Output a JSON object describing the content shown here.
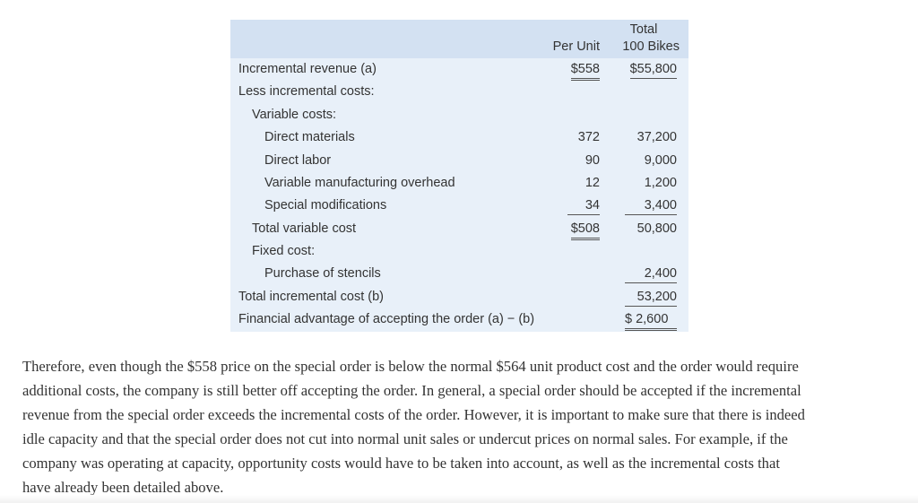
{
  "table": {
    "header": {
      "per_unit": "Per Unit",
      "total_line1": "Total",
      "total_line2": "100 Bikes"
    },
    "rows": [
      {
        "label": "Incremental revenue (a)",
        "per_unit": "$558",
        "total": "$55,800"
      },
      {
        "label": "Less incremental costs:",
        "per_unit": "",
        "total": ""
      },
      {
        "label": "Variable costs:",
        "per_unit": "",
        "total": ""
      },
      {
        "label": "Direct materials",
        "per_unit": "372",
        "total": "37,200"
      },
      {
        "label": "Direct labor",
        "per_unit": "90",
        "total": "9,000"
      },
      {
        "label": "Variable manufacturing overhead",
        "per_unit": "12",
        "total": "1,200"
      },
      {
        "label": "Special modifications",
        "per_unit": "34",
        "total": "3,400"
      },
      {
        "label": "Total variable cost",
        "per_unit": "$508",
        "total": "50,800"
      },
      {
        "label": "Fixed cost:",
        "per_unit": "",
        "total": ""
      },
      {
        "label": "Purchase of stencils",
        "per_unit": "",
        "total": "2,400"
      },
      {
        "label": "Total incremental cost (b)",
        "per_unit": "",
        "total": "53,200"
      },
      {
        "label": "Financial advantage of accepting the order (a) − (b)",
        "per_unit": "",
        "total": "$ 2,600"
      }
    ]
  },
  "paragraph": {
    "lines": [
      "Therefore, even though the $558 price on the special order is below the normal $564 unit product cost and the order would require",
      "additional costs, the company is still better off accepting the order. In general, a special order should be accepted if the incremental",
      "revenue from the special order exceeds the incremental costs of the order. However, it is important to make sure that there is indeed",
      "idle capacity and that the special order does not cut into normal unit sales or undercut prices on normal sales. For example, if the",
      "company was operating at capacity, opportunity costs would have to be taken into account, as well as the incremental costs that",
      "have already been detailed above."
    ]
  },
  "colors": {
    "header_bg": "#d3e1f2",
    "body_bg": "#e8f0f9",
    "text": "#333333"
  }
}
